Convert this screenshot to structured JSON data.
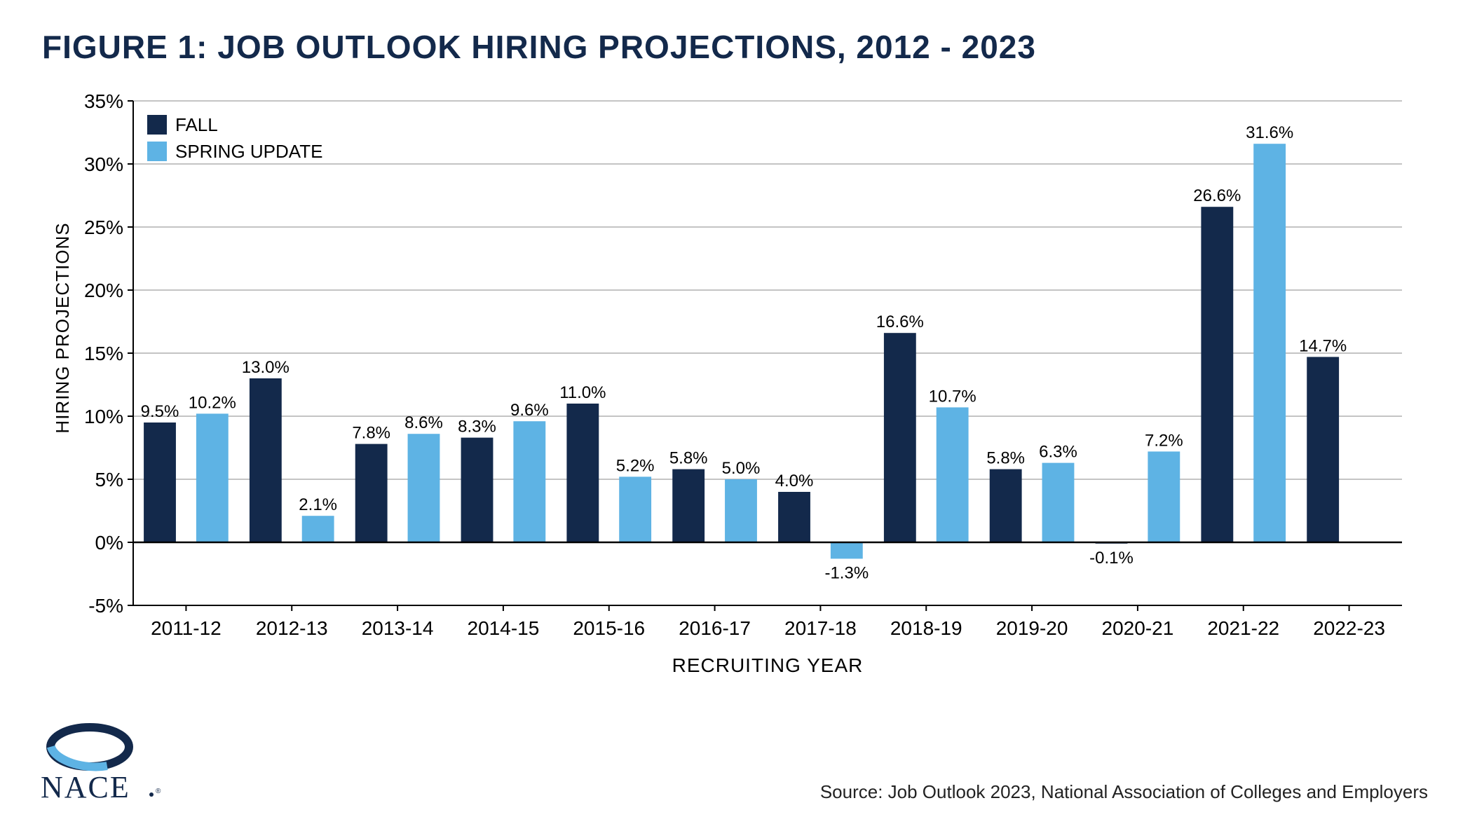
{
  "title": "FIGURE 1: JOB OUTLOOK HIRING PROJECTIONS, 2012 - 2023",
  "title_color": "#13294b",
  "title_fontsize": 46,
  "source": "Source: Job Outlook 2023, National Association of Colleges and Employers",
  "logo_text": "NACE",
  "chart": {
    "type": "bar-grouped",
    "background_color": "#ffffff",
    "axis_color": "#000000",
    "grid_color": "#888888",
    "grid_width": 1,
    "tick_fontsize": 28,
    "tick_color": "#000000",
    "bar_label_fontsize": 24,
    "bar_label_color": "#000000",
    "y_axis": {
      "label": "HIRING PROJECTIONS",
      "label_fontsize": 26,
      "min": -5,
      "max": 35,
      "tick_step": 5,
      "tick_suffix": "%"
    },
    "x_axis": {
      "label": "RECRUITING YEAR",
      "label_fontsize": 28,
      "categories": [
        "2011-12",
        "2012-13",
        "2013-14",
        "2014-15",
        "2015-16",
        "2016-17",
        "2017-18",
        "2018-19",
        "2019-20",
        "2020-21",
        "2021-22",
        "2022-23"
      ]
    },
    "series": [
      {
        "name": "FALL",
        "color": "#13294b",
        "values": [
          9.5,
          13.0,
          7.8,
          8.3,
          11.0,
          5.8,
          4.0,
          16.6,
          5.8,
          -0.1,
          26.6,
          14.7
        ]
      },
      {
        "name": "SPRING UPDATE",
        "color": "#5eb3e4",
        "values": [
          10.2,
          2.1,
          8.6,
          9.6,
          5.2,
          5.0,
          -1.3,
          10.7,
          6.3,
          7.2,
          31.6,
          null
        ]
      }
    ],
    "legend": {
      "position": "top-left-inside",
      "fontsize": 26,
      "swatch_size": 28
    },
    "plot": {
      "bar_width_ratio": 0.38,
      "group_gap_ratio": 0.2
    }
  }
}
